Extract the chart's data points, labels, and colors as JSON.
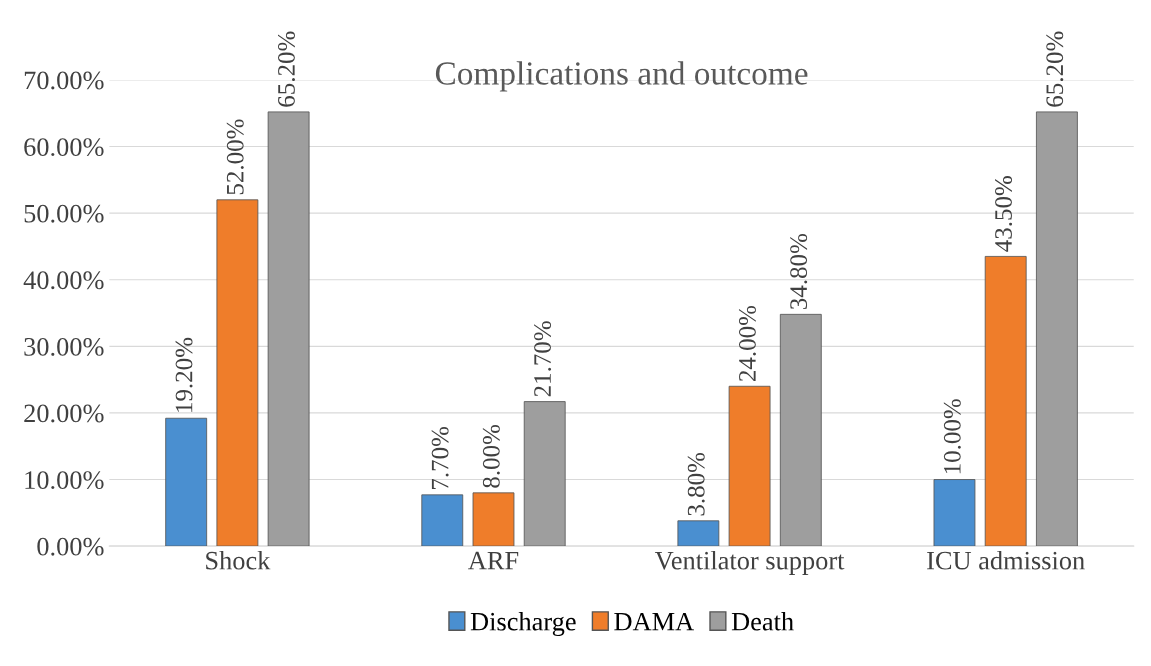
{
  "chart_data": {
    "type": "bar",
    "title": "Complications and outcome",
    "categories": [
      "Shock",
      "ARF",
      "Ventilator support",
      "ICU admission"
    ],
    "series": [
      {
        "name": "Discharge",
        "color": "#4a8fd0",
        "values": [
          19.2,
          7.7,
          3.8,
          10.0
        ],
        "value_labels": [
          "19.20%",
          "7.70%",
          "3.80%",
          "10.00%"
        ]
      },
      {
        "name": "DAMA",
        "color": "#ef7d2a",
        "values": [
          52.0,
          8.0,
          24.0,
          43.5
        ],
        "value_labels": [
          "52.00%",
          "8.00%",
          "24.00%",
          "43.50%"
        ]
      },
      {
        "name": "Death",
        "color": "#9e9e9e",
        "values": [
          65.2,
          21.7,
          34.8,
          65.2
        ],
        "value_labels": [
          "65.20%",
          "21.70%",
          "34.80%",
          "65.20%"
        ]
      }
    ],
    "ylim": [
      0,
      70
    ],
    "yticks": [
      {
        "value": 0,
        "label": "0.00%"
      },
      {
        "value": 10,
        "label": "10.00%"
      },
      {
        "value": 20,
        "label": "20.00%"
      },
      {
        "value": 30,
        "label": "30.00%"
      },
      {
        "value": 40,
        "label": "40.00%"
      },
      {
        "value": 50,
        "label": "50.00%"
      },
      {
        "value": 60,
        "label": "60.00%"
      },
      {
        "value": 70,
        "label": "70.00%"
      }
    ],
    "grid": "y",
    "legend": "bottom"
  }
}
